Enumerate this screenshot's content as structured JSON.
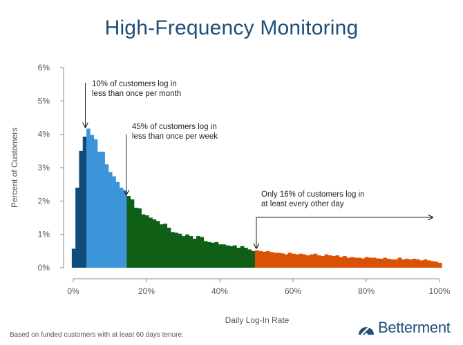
{
  "colors": {
    "title": "#1f4e79",
    "segments": [
      "#0e4a7a",
      "#3d95d9",
      "#0f5f17",
      "#d95206"
    ],
    "axis": "#888888",
    "arrow": "#222222"
  },
  "footnote": "Based on funded customers with at least 60 days tenure.",
  "logo": {
    "text": "Betterment",
    "icon": "betterment-gauge-icon"
  },
  "chart_data": {
    "type": "bar",
    "title": "High-Frequency Monitoring",
    "xlabel": "Daily Log-In Rate",
    "ylabel": "Percent of Customers",
    "xlim": [
      0,
      100
    ],
    "ylim": [
      0,
      6
    ],
    "bin_width": 1,
    "x_ticks": [
      0,
      20,
      40,
      60,
      80,
      100
    ],
    "x_tick_labels": [
      "0%",
      "20%",
      "40%",
      "60%",
      "80%",
      "100%"
    ],
    "y_ticks": [
      0,
      1,
      2,
      3,
      4,
      5,
      6
    ],
    "y_tick_labels": [
      "0%",
      "1%",
      "2%",
      "3%",
      "4%",
      "5%",
      "6%"
    ],
    "grid": false,
    "segments": [
      {
        "from": 0,
        "to": 3.5
      },
      {
        "from": 3.5,
        "to": 14.5
      },
      {
        "from": 14.5,
        "to": 49.5
      },
      {
        "from": 49.5,
        "to": 101
      }
    ],
    "x": [
      0,
      1,
      2,
      3,
      4,
      5,
      6,
      7,
      8,
      9,
      10,
      11,
      12,
      13,
      14,
      15,
      16,
      17,
      18,
      19,
      20,
      21,
      22,
      23,
      24,
      25,
      26,
      27,
      28,
      29,
      30,
      31,
      32,
      33,
      34,
      35,
      36,
      37,
      38,
      39,
      40,
      41,
      42,
      43,
      44,
      45,
      46,
      47,
      48,
      49,
      50,
      51,
      52,
      53,
      54,
      55,
      56,
      57,
      58,
      59,
      60,
      61,
      62,
      63,
      64,
      65,
      66,
      67,
      68,
      69,
      70,
      71,
      72,
      73,
      74,
      75,
      76,
      77,
      78,
      79,
      80,
      81,
      82,
      83,
      84,
      85,
      86,
      87,
      88,
      89,
      90,
      91,
      92,
      93,
      94,
      95,
      96,
      97,
      98,
      99,
      100
    ],
    "values": [
      0.57,
      2.4,
      3.5,
      3.93,
      4.17,
      3.98,
      3.85,
      3.48,
      3.48,
      3.1,
      2.87,
      2.74,
      2.57,
      2.4,
      2.32,
      2.15,
      2.05,
      1.8,
      1.78,
      1.6,
      1.57,
      1.5,
      1.45,
      1.4,
      1.3,
      1.32,
      1.2,
      1.07,
      1.05,
      1.02,
      0.95,
      1.0,
      0.95,
      0.87,
      0.95,
      0.92,
      0.8,
      0.77,
      0.75,
      0.77,
      0.7,
      0.7,
      0.67,
      0.65,
      0.67,
      0.6,
      0.65,
      0.6,
      0.55,
      0.5,
      0.52,
      0.5,
      0.48,
      0.5,
      0.47,
      0.45,
      0.45,
      0.43,
      0.4,
      0.45,
      0.42,
      0.4,
      0.42,
      0.4,
      0.37,
      0.4,
      0.42,
      0.37,
      0.35,
      0.4,
      0.37,
      0.35,
      0.37,
      0.32,
      0.35,
      0.3,
      0.32,
      0.3,
      0.3,
      0.28,
      0.32,
      0.3,
      0.3,
      0.28,
      0.27,
      0.3,
      0.27,
      0.25,
      0.25,
      0.3,
      0.25,
      0.27,
      0.25,
      0.27,
      0.25,
      0.22,
      0.25,
      0.22,
      0.2,
      0.18,
      0.15
    ],
    "annotations": [
      {
        "lines": [
          "10% of customers log in",
          "less than once per month"
        ],
        "x": 3.3,
        "arrow": "down"
      },
      {
        "lines": [
          "45% of customers log in",
          "less than once per week"
        ],
        "x": 14.5,
        "arrow": "down"
      },
      {
        "lines": [
          "Only 16% of customers log in",
          "at least every other day"
        ],
        "x": 50,
        "arrow": "down-and-right",
        "arrow_to_x": 100
      }
    ]
  }
}
